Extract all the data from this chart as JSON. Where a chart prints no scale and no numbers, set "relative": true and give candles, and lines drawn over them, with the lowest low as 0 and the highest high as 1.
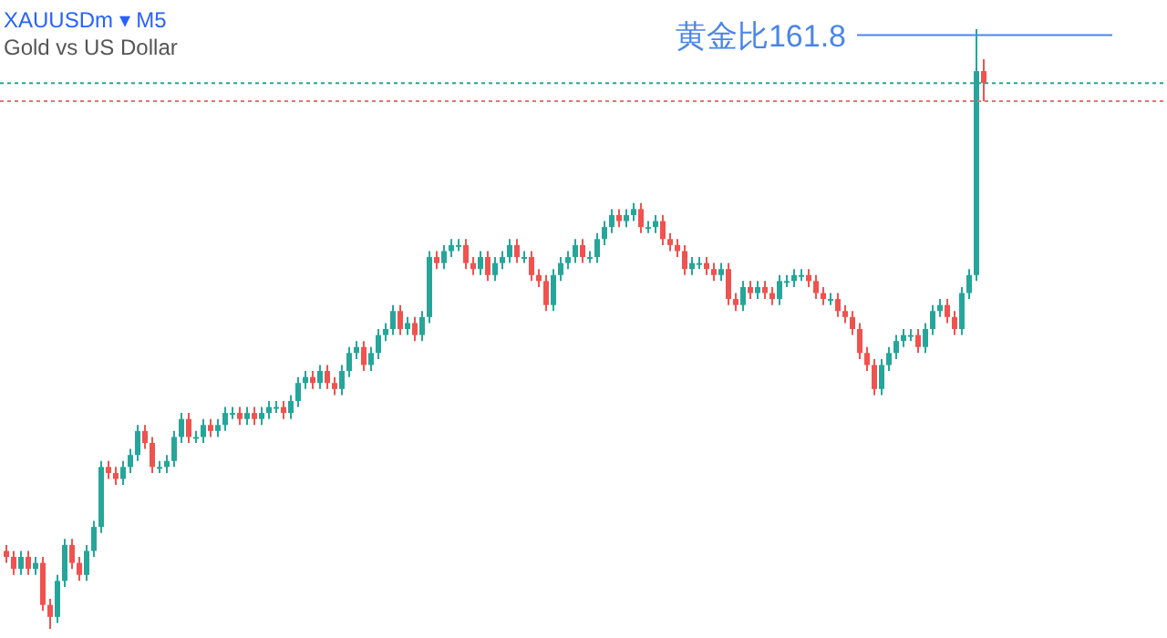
{
  "chart_data": {
    "type": "candlestick",
    "title": "XAUUSDm ▾ M5",
    "subtitle": "Gold vs US Dollar",
    "relative": true,
    "categories": [
      null,
      null,
      null,
      null,
      null,
      null,
      null,
      null,
      null,
      null,
      null,
      null,
      null,
      null,
      null,
      null,
      null,
      null,
      null,
      null,
      null,
      null,
      null,
      null,
      null,
      null,
      null,
      null,
      null,
      null,
      null,
      null,
      null,
      null,
      null,
      null,
      null,
      null,
      null,
      null,
      null,
      null,
      null,
      null,
      null,
      null,
      null,
      null,
      null,
      null,
      null,
      null,
      null,
      null,
      null,
      null,
      null,
      null,
      null,
      null,
      null,
      null,
      null,
      null,
      null,
      null,
      null,
      null,
      null,
      null,
      null,
      null,
      null,
      null,
      null,
      null,
      null,
      null,
      null,
      null,
      null,
      null,
      null,
      null,
      null,
      null,
      null,
      null,
      null,
      null,
      null,
      null,
      null,
      null,
      null,
      null,
      null,
      null,
      null,
      null,
      null,
      null,
      null,
      null,
      null,
      null,
      null,
      null,
      null,
      null,
      null,
      null,
      null,
      null,
      null,
      null,
      null,
      null,
      null,
      null,
      null,
      null,
      null,
      null,
      null,
      null,
      null,
      null,
      null,
      null,
      null,
      null,
      null,
      null,
      null
    ],
    "ohlc": [
      [
        0.13,
        0.14,
        0.11,
        0.12
      ],
      [
        0.12,
        0.13,
        0.09,
        0.1
      ],
      [
        0.1,
        0.13,
        0.09,
        0.12
      ],
      [
        0.12,
        0.13,
        0.09,
        0.1
      ],
      [
        0.1,
        0.12,
        0.09,
        0.11
      ],
      [
        0.11,
        0.12,
        0.03,
        0.04
      ],
      [
        0.04,
        0.05,
        0,
        0.02
      ],
      [
        0.02,
        0.09,
        0.01,
        0.08
      ],
      [
        0.08,
        0.15,
        0.07,
        0.14
      ],
      [
        0.14,
        0.15,
        0.1,
        0.11
      ],
      [
        0.11,
        0.12,
        0.08,
        0.09
      ],
      [
        0.09,
        0.14,
        0.08,
        0.13
      ],
      [
        0.13,
        0.18,
        0.12,
        0.17
      ],
      [
        0.17,
        0.28,
        0.16,
        0.27
      ],
      [
        0.27,
        0.28,
        0.25,
        0.26
      ],
      [
        0.26,
        0.27,
        0.24,
        0.25
      ],
      [
        0.25,
        0.28,
        0.24,
        0.27
      ],
      [
        0.27,
        0.3,
        0.26,
        0.29
      ],
      [
        0.29,
        0.34,
        0.28,
        0.33
      ],
      [
        0.33,
        0.34,
        0.3,
        0.31
      ],
      [
        0.31,
        0.32,
        0.26,
        0.27
      ],
      [
        0.27,
        0.28,
        0.26,
        0.27
      ],
      [
        0.27,
        0.29,
        0.26,
        0.28
      ],
      [
        0.28,
        0.33,
        0.27,
        0.32
      ],
      [
        0.32,
        0.36,
        0.31,
        0.35
      ],
      [
        0.35,
        0.36,
        0.31,
        0.32
      ],
      [
        0.32,
        0.33,
        0.31,
        0.32
      ],
      [
        0.32,
        0.35,
        0.31,
        0.34
      ],
      [
        0.34,
        0.35,
        0.32,
        0.33
      ],
      [
        0.33,
        0.35,
        0.32,
        0.34
      ],
      [
        0.34,
        0.37,
        0.33,
        0.36
      ],
      [
        0.36,
        0.37,
        0.35,
        0.36
      ],
      [
        0.36,
        0.37,
        0.34,
        0.35
      ],
      [
        0.35,
        0.37,
        0.34,
        0.36
      ],
      [
        0.36,
        0.37,
        0.34,
        0.35
      ],
      [
        0.35,
        0.37,
        0.34,
        0.36
      ],
      [
        0.36,
        0.38,
        0.35,
        0.37
      ],
      [
        0.37,
        0.38,
        0.36,
        0.37
      ],
      [
        0.37,
        0.38,
        0.35,
        0.36
      ],
      [
        0.36,
        0.39,
        0.35,
        0.38
      ],
      [
        0.38,
        0.42,
        0.37,
        0.41
      ],
      [
        0.41,
        0.43,
        0.4,
        0.42
      ],
      [
        0.42,
        0.43,
        0.4,
        0.41
      ],
      [
        0.41,
        0.44,
        0.4,
        0.43
      ],
      [
        0.43,
        0.44,
        0.4,
        0.41
      ],
      [
        0.41,
        0.42,
        0.39,
        0.4
      ],
      [
        0.4,
        0.44,
        0.39,
        0.43
      ],
      [
        0.43,
        0.47,
        0.42,
        0.46
      ],
      [
        0.46,
        0.48,
        0.45,
        0.47
      ],
      [
        0.47,
        0.48,
        0.43,
        0.44
      ],
      [
        0.44,
        0.47,
        0.43,
        0.46
      ],
      [
        0.46,
        0.5,
        0.45,
        0.49
      ],
      [
        0.49,
        0.51,
        0.48,
        0.5
      ],
      [
        0.5,
        0.54,
        0.49,
        0.53
      ],
      [
        0.53,
        0.54,
        0.49,
        0.5
      ],
      [
        0.5,
        0.52,
        0.49,
        0.51
      ],
      [
        0.51,
        0.52,
        0.48,
        0.49
      ],
      [
        0.49,
        0.53,
        0.48,
        0.52
      ],
      [
        0.52,
        0.63,
        0.51,
        0.62
      ],
      [
        0.62,
        0.63,
        0.6,
        0.61
      ],
      [
        0.61,
        0.64,
        0.6,
        0.63
      ],
      [
        0.63,
        0.65,
        0.62,
        0.64
      ],
      [
        0.64,
        0.65,
        0.63,
        0.64
      ],
      [
        0.64,
        0.65,
        0.6,
        0.61
      ],
      [
        0.61,
        0.62,
        0.59,
        0.6
      ],
      [
        0.6,
        0.63,
        0.59,
        0.62
      ],
      [
        0.62,
        0.63,
        0.58,
        0.59
      ],
      [
        0.59,
        0.62,
        0.58,
        0.61
      ],
      [
        0.61,
        0.63,
        0.6,
        0.62
      ],
      [
        0.62,
        0.65,
        0.61,
        0.64
      ],
      [
        0.64,
        0.65,
        0.61,
        0.62
      ],
      [
        0.62,
        0.63,
        0.61,
        0.62
      ],
      [
        0.62,
        0.63,
        0.58,
        0.59
      ],
      [
        0.59,
        0.6,
        0.57,
        0.58
      ],
      [
        0.58,
        0.59,
        0.53,
        0.54
      ],
      [
        0.54,
        0.6,
        0.53,
        0.59
      ],
      [
        0.59,
        0.62,
        0.58,
        0.61
      ],
      [
        0.61,
        0.63,
        0.6,
        0.62
      ],
      [
        0.62,
        0.65,
        0.61,
        0.64
      ],
      [
        0.64,
        0.65,
        0.61,
        0.62
      ],
      [
        0.62,
        0.63,
        0.61,
        0.62
      ],
      [
        0.62,
        0.66,
        0.61,
        0.65
      ],
      [
        0.65,
        0.68,
        0.64,
        0.67
      ],
      [
        0.67,
        0.7,
        0.66,
        0.69
      ],
      [
        0.69,
        0.7,
        0.67,
        0.68
      ],
      [
        0.68,
        0.7,
        0.67,
        0.69
      ],
      [
        0.69,
        0.71,
        0.68,
        0.7
      ],
      [
        0.7,
        0.71,
        0.66,
        0.67
      ],
      [
        0.67,
        0.68,
        0.66,
        0.67
      ],
      [
        0.67,
        0.69,
        0.66,
        0.68
      ],
      [
        0.68,
        0.69,
        0.64,
        0.65
      ],
      [
        0.65,
        0.66,
        0.63,
        0.64
      ],
      [
        0.64,
        0.65,
        0.62,
        0.63
      ],
      [
        0.63,
        0.64,
        0.59,
        0.6
      ],
      [
        0.6,
        0.62,
        0.59,
        0.61
      ],
      [
        0.61,
        0.62,
        0.6,
        0.61
      ],
      [
        0.61,
        0.62,
        0.59,
        0.6
      ],
      [
        0.6,
        0.61,
        0.58,
        0.59
      ],
      [
        0.59,
        0.61,
        0.58,
        0.6
      ],
      [
        0.6,
        0.61,
        0.54,
        0.55
      ],
      [
        0.55,
        0.56,
        0.53,
        0.54
      ],
      [
        0.54,
        0.58,
        0.53,
        0.57
      ],
      [
        0.57,
        0.58,
        0.55,
        0.56
      ],
      [
        0.56,
        0.58,
        0.55,
        0.57
      ],
      [
        0.57,
        0.58,
        0.55,
        0.56
      ],
      [
        0.56,
        0.57,
        0.54,
        0.55
      ],
      [
        0.55,
        0.59,
        0.54,
        0.58
      ],
      [
        0.58,
        0.59,
        0.57,
        0.58
      ],
      [
        0.58,
        0.6,
        0.57,
        0.59
      ],
      [
        0.59,
        0.6,
        0.58,
        0.59
      ],
      [
        0.59,
        0.6,
        0.57,
        0.58
      ],
      [
        0.58,
        0.59,
        0.55,
        0.56
      ],
      [
        0.56,
        0.57,
        0.54,
        0.55
      ],
      [
        0.55,
        0.56,
        0.54,
        0.55
      ],
      [
        0.55,
        0.56,
        0.52,
        0.53
      ],
      [
        0.53,
        0.54,
        0.51,
        0.52
      ],
      [
        0.52,
        0.53,
        0.49,
        0.5
      ],
      [
        0.5,
        0.51,
        0.45,
        0.46
      ],
      [
        0.46,
        0.47,
        0.43,
        0.44
      ],
      [
        0.44,
        0.45,
        0.39,
        0.4
      ],
      [
        0.4,
        0.45,
        0.39,
        0.44
      ],
      [
        0.44,
        0.47,
        0.43,
        0.46
      ],
      [
        0.46,
        0.49,
        0.45,
        0.48
      ],
      [
        0.48,
        0.5,
        0.47,
        0.49
      ],
      [
        0.49,
        0.5,
        0.48,
        0.49
      ],
      [
        0.49,
        0.5,
        0.46,
        0.47
      ],
      [
        0.47,
        0.51,
        0.46,
        0.5
      ],
      [
        0.5,
        0.54,
        0.49,
        0.53
      ],
      [
        0.53,
        0.55,
        0.52,
        0.54
      ],
      [
        0.54,
        0.55,
        0.51,
        0.52
      ],
      [
        0.52,
        0.53,
        0.49,
        0.5
      ],
      [
        0.5,
        0.57,
        0.49,
        0.56
      ],
      [
        0.56,
        0.6,
        0.55,
        0.59
      ],
      [
        0.59,
        1,
        0.58,
        0.93
      ],
      [
        0.93,
        0.95,
        0.88,
        0.91
      ]
    ],
    "ref_lines": [
      {
        "axis": "y",
        "value": 0.99,
        "label": "黄金比161.8",
        "color": "#4a86e8"
      },
      {
        "axis": "y",
        "value": 0.91,
        "color": "#26a69a",
        "line_style": "dotted"
      },
      {
        "axis": "y",
        "value": 0.88,
        "color": "#e57373",
        "line_style": "dotted"
      }
    ]
  }
}
